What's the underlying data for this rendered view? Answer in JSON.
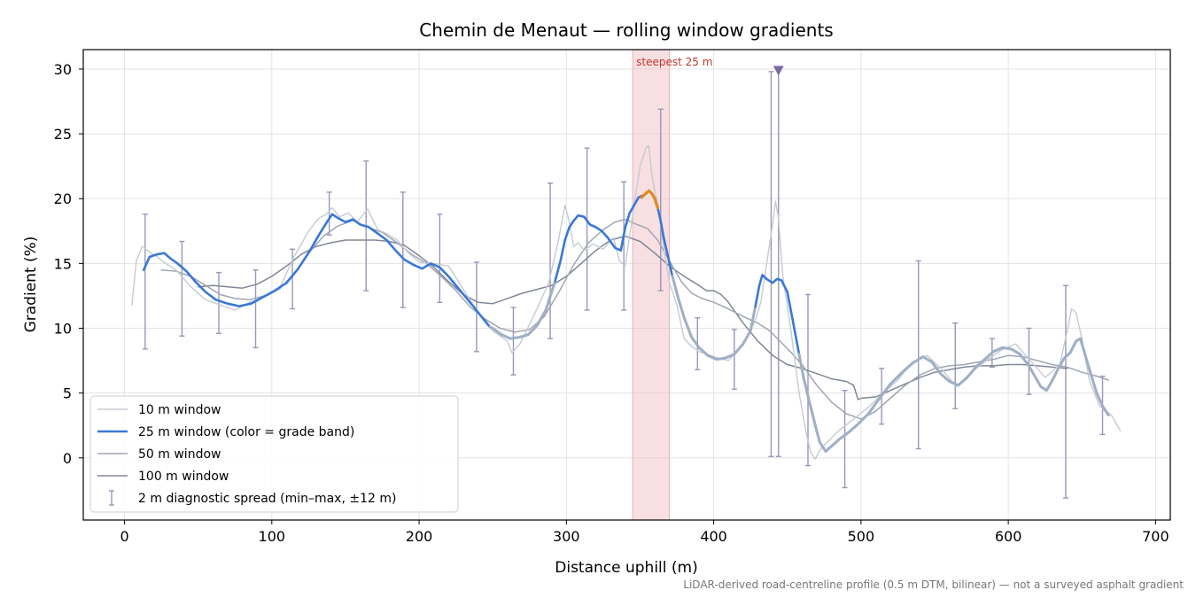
{
  "chart_data": {
    "type": "line",
    "title": "Chemin de Menaut — rolling window gradients",
    "xlabel": "Distance uphill (m)",
    "ylabel": "Gradient (%)",
    "xlim": [
      -28,
      710
    ],
    "ylim": [
      -4.8,
      31.5
    ],
    "xticks": [
      0,
      100,
      200,
      300,
      400,
      500,
      600,
      700
    ],
    "yticks": [
      0,
      5,
      10,
      15,
      20,
      25,
      30
    ],
    "xtick_labels": [
      "0",
      "100",
      "200",
      "300",
      "400",
      "500",
      "600",
      "700"
    ],
    "ytick_labels": [
      "0",
      "5",
      "10",
      "15",
      "20",
      "25",
      "30"
    ],
    "grid": true,
    "legend_position": "lower-left",
    "footnote": "LiDAR-derived road-centreline profile (0.5 m DTM, bilinear) — not a surveyed asphalt gradient",
    "highlight": {
      "label": "steepest 25 m",
      "x_start": 345,
      "x_end": 370,
      "color": "#f2c4c8"
    },
    "peak_marker": {
      "x": 444,
      "y": 29.9,
      "color": "#7c6ca3"
    },
    "series": [
      {
        "name": "10 m window",
        "color": "#c5cbd3",
        "width": 1.4,
        "x": [
          5,
          8,
          12,
          18,
          22,
          28,
          35,
          45,
          55,
          65,
          75,
          85,
          95,
          105,
          115,
          125,
          132,
          137,
          141,
          146,
          152,
          158,
          165,
          172,
          178,
          185,
          192,
          200,
          210,
          220,
          230,
          240,
          250,
          260,
          263,
          268,
          272,
          280,
          288,
          295,
          299,
          302,
          305,
          308,
          312,
          318,
          325,
          332,
          336,
          340,
          345,
          350,
          354,
          356,
          358,
          360,
          362,
          364,
          367,
          370,
          375,
          380,
          385,
          390,
          400,
          410,
          420,
          428,
          432,
          436,
          440,
          442,
          444,
          447,
          452,
          458,
          463,
          466,
          469,
          472,
          477,
          485,
          495,
          505,
          515,
          525,
          535,
          545,
          555,
          565,
          575,
          585,
          595,
          605,
          615,
          625,
          635,
          640,
          643,
          646,
          650,
          655,
          662,
          670,
          676
        ],
        "y": [
          11.8,
          15.2,
          16.3,
          15.8,
          15.5,
          15.0,
          14.5,
          13.2,
          12.2,
          11.8,
          11.4,
          12.0,
          12.4,
          13.0,
          15.5,
          17.5,
          18.5,
          18.8,
          19.3,
          18.6,
          18.9,
          18.2,
          19.2,
          17.6,
          17.3,
          16.8,
          15.9,
          15.1,
          15.0,
          14.8,
          13.0,
          11.2,
          9.8,
          9.0,
          8.1,
          8.7,
          9.6,
          11.5,
          13.5,
          17.0,
          19.5,
          18.2,
          16.3,
          16.6,
          16.0,
          16.5,
          16.1,
          17.0,
          15.2,
          14.8,
          18.8,
          22.5,
          23.9,
          24.1,
          21.8,
          20.6,
          19.5,
          18.0,
          15.6,
          13.5,
          11.8,
          9.2,
          8.6,
          8.2,
          7.8,
          7.5,
          8.8,
          10.5,
          12.0,
          15.0,
          18.0,
          19.8,
          18.5,
          14.0,
          10.2,
          5.0,
          1.8,
          0.4,
          -0.1,
          0.6,
          1.2,
          2.1,
          3.0,
          3.9,
          5.0,
          6.0,
          7.4,
          7.9,
          6.8,
          5.5,
          6.6,
          7.5,
          8.3,
          8.8,
          7.5,
          6.2,
          7.2,
          9.8,
          11.5,
          11.2,
          9.2,
          6.0,
          4.0,
          3.3,
          2.1
        ]
      },
      {
        "name": "25 m window (color = grade band)",
        "color": "#3a78d4",
        "width": 2.6,
        "x": [
          13,
          17,
          22,
          27,
          31,
          36,
          42,
          48,
          55,
          62,
          70,
          78,
          86,
          94,
          102,
          110,
          118,
          126,
          132,
          138,
          141,
          145,
          150,
          155,
          160,
          166,
          172,
          178,
          184,
          190,
          196,
          202,
          208,
          214,
          220,
          228,
          236,
          243,
          248,
          250,
          256,
          262,
          268,
          274,
          280,
          286,
          292,
          296,
          299,
          302,
          305,
          308,
          312,
          316,
          320,
          324,
          328,
          333,
          337,
          340,
          343,
          346,
          349,
          351,
          353,
          356,
          358,
          360,
          362,
          364,
          366,
          369,
          372,
          376,
          380,
          385,
          390,
          396,
          402,
          408,
          414,
          420,
          425,
          428,
          431,
          433,
          436,
          440,
          443,
          446,
          450,
          454,
          458,
          461,
          465,
          469,
          472,
          476,
          480,
          486,
          492,
          498,
          505,
          512,
          520,
          528,
          535,
          542,
          548,
          554,
          560,
          566,
          572,
          578,
          584,
          590,
          596,
          602,
          608,
          614,
          618,
          622,
          626,
          630,
          634,
          638,
          642,
          646,
          649,
          652,
          656,
          660,
          664,
          668
        ],
        "y": [
          14.5,
          15.5,
          15.7,
          15.8,
          15.4,
          15.0,
          14.4,
          13.6,
          12.8,
          12.2,
          11.9,
          11.7,
          11.9,
          12.4,
          12.9,
          13.5,
          14.6,
          16.0,
          17.2,
          18.3,
          18.8,
          18.5,
          18.2,
          18.4,
          18.0,
          17.8,
          17.3,
          16.8,
          16.0,
          15.3,
          14.9,
          14.6,
          15.0,
          14.7,
          14.0,
          12.9,
          11.8,
          10.8,
          10.1,
          10.0,
          9.5,
          9.2,
          9.3,
          9.5,
          10.2,
          11.4,
          13.5,
          15.2,
          16.8,
          17.8,
          18.3,
          18.7,
          18.6,
          18.0,
          17.8,
          17.5,
          17.0,
          16.2,
          16.0,
          17.8,
          18.9,
          19.5,
          20.1,
          20.2,
          20.3,
          20.6,
          20.4,
          20.0,
          19.3,
          18.3,
          17.0,
          15.5,
          14.0,
          12.3,
          10.8,
          9.3,
          8.5,
          7.9,
          7.6,
          7.7,
          8.0,
          8.8,
          9.8,
          11.5,
          13.3,
          14.1,
          13.8,
          13.5,
          13.8,
          13.7,
          12.8,
          10.4,
          8.0,
          6.2,
          4.3,
          2.5,
          1.2,
          0.5,
          0.9,
          1.5,
          2.0,
          2.6,
          3.4,
          4.5,
          5.7,
          6.6,
          7.3,
          7.8,
          7.4,
          6.5,
          5.9,
          5.6,
          6.2,
          7.0,
          7.6,
          8.2,
          8.5,
          8.4,
          8.0,
          7.1,
          6.3,
          5.5,
          5.2,
          6.0,
          6.9,
          7.7,
          8.1,
          9.0,
          9.2,
          8.0,
          6.5,
          5.0,
          4.0,
          3.3
        ]
      },
      {
        "name": "50 m window",
        "color": "#9fa6b3",
        "width": 1.5,
        "x": [
          25,
          35,
          45,
          55,
          65,
          75,
          85,
          95,
          105,
          115,
          125,
          135,
          145,
          155,
          165,
          175,
          185,
          195,
          205,
          215,
          225,
          235,
          245,
          255,
          265,
          275,
          285,
          295,
          305,
          315,
          325,
          333,
          340,
          348,
          355,
          362,
          370,
          378,
          385,
          392,
          400,
          408,
          415,
          422,
          430,
          438,
          445,
          452,
          460,
          470,
          480,
          490,
          500,
          510,
          520,
          530,
          540,
          550,
          560,
          570,
          580,
          590,
          600,
          610,
          620,
          630,
          640,
          650,
          660,
          668
        ],
        "y": [
          14.5,
          14.4,
          14.0,
          13.3,
          12.6,
          12.3,
          12.2,
          12.5,
          13.0,
          14.2,
          15.8,
          17.1,
          17.9,
          18.3,
          17.8,
          17.4,
          16.6,
          15.7,
          15.0,
          14.0,
          12.9,
          11.6,
          10.7,
          10.0,
          9.7,
          9.9,
          10.9,
          12.8,
          14.9,
          16.6,
          17.6,
          18.2,
          18.4,
          18.0,
          17.7,
          16.8,
          15.2,
          13.6,
          12.7,
          12.3,
          12.0,
          11.6,
          11.2,
          10.8,
          10.4,
          9.8,
          9.0,
          8.2,
          7.2,
          5.6,
          4.3,
          3.4,
          3.0,
          3.6,
          4.6,
          5.6,
          6.4,
          6.9,
          7.1,
          7.2,
          7.4,
          7.6,
          7.9,
          7.8,
          7.5,
          7.2,
          7.0,
          6.6,
          6.3,
          6.0
        ]
      },
      {
        "name": "100 m window",
        "color": "#808796",
        "width": 1.5,
        "x": [
          50,
          60,
          70,
          80,
          90,
          100,
          110,
          120,
          130,
          140,
          150,
          160,
          170,
          180,
          190,
          200,
          210,
          220,
          230,
          240,
          250,
          260,
          270,
          280,
          290,
          300,
          310,
          320,
          330,
          340,
          350,
          360,
          370,
          380,
          390,
          395,
          400,
          405,
          410,
          420,
          430,
          440,
          450,
          460,
          470,
          480,
          490,
          495,
          498,
          500,
          510,
          520,
          530,
          540,
          550,
          560,
          570,
          580,
          590,
          600,
          610,
          620,
          630,
          640
        ],
        "y": [
          13.2,
          13.3,
          13.2,
          13.1,
          13.4,
          14.0,
          14.8,
          15.7,
          16.3,
          16.6,
          16.8,
          16.8,
          16.8,
          16.7,
          16.4,
          15.6,
          14.7,
          13.6,
          12.6,
          12.0,
          11.9,
          12.3,
          12.7,
          13.0,
          13.3,
          14.0,
          15.0,
          16.0,
          16.8,
          17.1,
          16.7,
          15.8,
          14.8,
          14.0,
          13.3,
          12.9,
          12.9,
          12.6,
          12.0,
          10.4,
          9.0,
          7.9,
          7.2,
          6.9,
          6.5,
          6.1,
          5.9,
          5.6,
          4.5,
          4.6,
          4.7,
          5.2,
          5.7,
          6.2,
          6.6,
          6.8,
          7.0,
          7.1,
          7.1,
          7.2,
          7.2,
          7.1,
          7.0,
          6.9
        ]
      }
    ],
    "error_bars": {
      "name": "2 m diagnostic spread (min–max, ±12 m)",
      "color": "#9a96b8",
      "x": [
        14,
        39,
        64,
        89,
        114,
        139,
        164,
        189,
        214,
        239,
        264,
        289,
        314,
        339,
        364,
        389,
        414,
        439,
        444,
        464,
        489,
        514,
        539,
        564,
        589,
        614,
        639,
        664
      ],
      "low": [
        8.4,
        9.4,
        9.6,
        8.5,
        11.5,
        17.2,
        12.9,
        11.6,
        12.0,
        8.2,
        6.4,
        9.2,
        11.4,
        11.4,
        12.9,
        6.8,
        5.3,
        0.1,
        0.1,
        -0.6,
        -2.3,
        2.6,
        0.7,
        3.8,
        7.0,
        4.9,
        -3.1,
        1.8
      ],
      "high": [
        18.8,
        16.7,
        14.3,
        14.5,
        16.1,
        20.5,
        22.9,
        20.5,
        18.8,
        15.1,
        11.6,
        21.2,
        23.9,
        21.3,
        26.9,
        10.8,
        9.9,
        29.8,
        29.9,
        12.6,
        5.2,
        6.9,
        15.2,
        10.4,
        9.2,
        10.0,
        13.3,
        6.3
      ]
    },
    "steep_segment": {
      "color": "#e08a1e",
      "x": [
        351,
        353,
        356,
        358,
        360,
        362
      ],
      "y": [
        20.1,
        20.3,
        20.6,
        20.4,
        20.0,
        19.3
      ]
    },
    "fade_segments": [
      {
        "x_start": 248,
        "x_end": 293,
        "color": "#9fb0c5"
      },
      {
        "x_start": 372,
        "x_end": 428,
        "color": "#9fb0c5"
      },
      {
        "x_start": 457,
        "x_end": 670,
        "color": "#9fb0c5"
      }
    ]
  }
}
